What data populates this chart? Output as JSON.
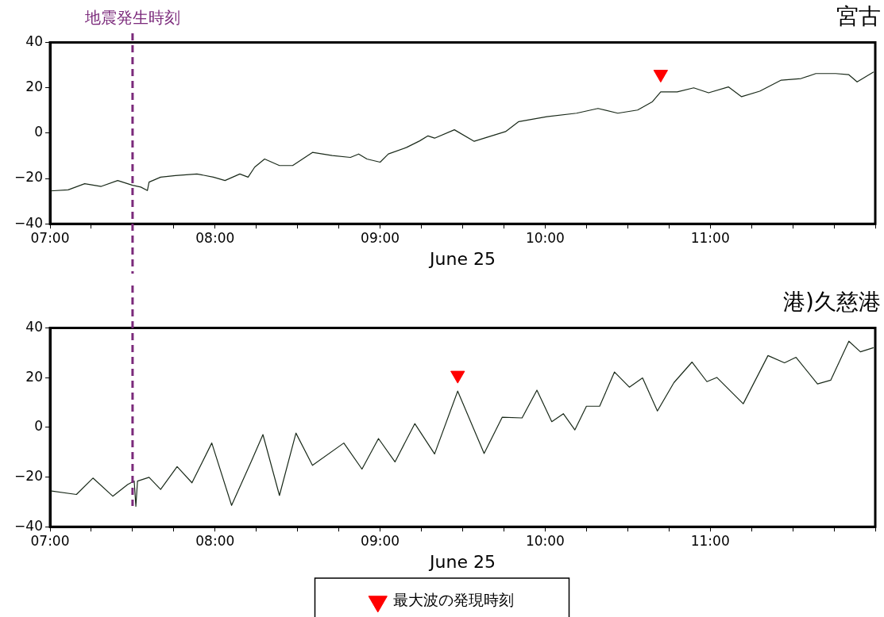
{
  "chart_data": [
    {
      "type": "line",
      "title": "宮古",
      "xlabel": "June 25",
      "xlim": [
        7,
        12
      ],
      "xticks": [
        {
          "value": 7,
          "label": "07:00"
        },
        {
          "value": 7.25,
          "label": null
        },
        {
          "value": 7.5,
          "label": null
        },
        {
          "value": 7.75,
          "label": null
        },
        {
          "value": 8,
          "label": "08:00"
        },
        {
          "value": 8.25,
          "label": null
        },
        {
          "value": 8.5,
          "label": null
        },
        {
          "value": 8.75,
          "label": null
        },
        {
          "value": 9,
          "label": "09:00"
        },
        {
          "value": 9.25,
          "label": null
        },
        {
          "value": 9.5,
          "label": null
        },
        {
          "value": 9.75,
          "label": null
        },
        {
          "value": 10,
          "label": "10:00"
        },
        {
          "value": 10.25,
          "label": null
        },
        {
          "value": 10.5,
          "label": null
        },
        {
          "value": 10.75,
          "label": null
        },
        {
          "value": 11,
          "label": "11:00"
        },
        {
          "value": 11.25,
          "label": null
        },
        {
          "value": 11.5,
          "label": null
        },
        {
          "value": 11.75,
          "label": null
        },
        {
          "value": 12,
          "label": null
        }
      ],
      "ylim": [
        -40,
        40
      ],
      "yticks": [
        -40,
        -20,
        0,
        20,
        40
      ],
      "grid": false,
      "legend": false,
      "marker": "none",
      "ref_lines": [
        {
          "axis": "x",
          "value": 7.5,
          "label": "地震発生時刻",
          "color": "#7b2a7b",
          "line_style": "dashed"
        }
      ],
      "series": [
        {
          "color": "#1a2a1a",
          "x": [
            7.0,
            7.11,
            7.21,
            7.31,
            7.41,
            7.5,
            7.55,
            7.59,
            7.6,
            7.67,
            7.76,
            7.89,
            7.99,
            8.06,
            8.15,
            8.2,
            8.24,
            8.3,
            8.39,
            8.47,
            8.59,
            8.71,
            8.82,
            8.87,
            8.92,
            9.0,
            9.05,
            9.16,
            9.24,
            9.29,
            9.33,
            9.45,
            9.57,
            9.76,
            9.84,
            10.01,
            10.19,
            10.32,
            10.44,
            10.56,
            10.65,
            10.7,
            10.8,
            10.9,
            10.99,
            11.11,
            11.19,
            11.3,
            11.43,
            11.55,
            11.64,
            11.76,
            11.84,
            11.89,
            11.99
          ],
          "values": [
            -25.5,
            -25,
            -22.3,
            -23.5,
            -20.9,
            -23,
            -23.8,
            -25.3,
            -21.6,
            -19.4,
            -18.7,
            -18,
            -19.4,
            -20.9,
            -18,
            -19.4,
            -15,
            -11.4,
            -14.3,
            -14.3,
            -8.5,
            -9.9,
            -10.7,
            -9.2,
            -11.4,
            -12.8,
            -9.2,
            -6.3,
            -3.4,
            -1.2,
            -2.2,
            1.5,
            -3.6,
            0.7,
            5.1,
            7.3,
            8.8,
            10.9,
            8.8,
            10.2,
            13.9,
            18.2,
            18.2,
            20,
            17.8,
            20.4,
            16.1,
            18.5,
            23.4,
            24.1,
            26.3,
            26.3,
            25.8,
            22.6,
            27
          ]
        },
        {
          "type": "scatter",
          "marker": "triangle",
          "color": "#ff0000",
          "x": [
            10.7
          ],
          "values": [
            26
          ]
        }
      ]
    },
    {
      "type": "line",
      "title": "港)久慈港",
      "xlabel": "June 25",
      "xlim": [
        7,
        12
      ],
      "xticks": [
        {
          "value": 7,
          "label": "07:00"
        },
        {
          "value": 7.25,
          "label": null
        },
        {
          "value": 7.5,
          "label": null
        },
        {
          "value": 7.75,
          "label": null
        },
        {
          "value": 8,
          "label": "08:00"
        },
        {
          "value": 8.25,
          "label": null
        },
        {
          "value": 8.5,
          "label": null
        },
        {
          "value": 8.75,
          "label": null
        },
        {
          "value": 9,
          "label": "09:00"
        },
        {
          "value": 9.25,
          "label": null
        },
        {
          "value": 9.5,
          "label": null
        },
        {
          "value": 9.75,
          "label": null
        },
        {
          "value": 10,
          "label": "10:00"
        },
        {
          "value": 10.25,
          "label": null
        },
        {
          "value": 10.5,
          "label": null
        },
        {
          "value": 10.75,
          "label": null
        },
        {
          "value": 11,
          "label": "11:00"
        },
        {
          "value": 11.25,
          "label": null
        },
        {
          "value": 11.5,
          "label": null
        },
        {
          "value": 11.75,
          "label": null
        },
        {
          "value": 12,
          "label": null
        }
      ],
      "ylim": [
        -40,
        40
      ],
      "yticks": [
        -40,
        -20,
        0,
        20,
        40
      ],
      "grid": false,
      "legend": "bottom",
      "marker": "none",
      "ref_lines": [
        {
          "axis": "x",
          "value": 7.5,
          "color": "#7b2a7b",
          "line_style": "dashed"
        }
      ],
      "series": [
        {
          "color": "#1a2a1a",
          "x": [
            7.0,
            7.16,
            7.26,
            7.38,
            7.47,
            7.51,
            7.52,
            7.53,
            7.6,
            7.67,
            7.77,
            7.86,
            7.98,
            8.1,
            8.22,
            8.29,
            8.39,
            8.49,
            8.59,
            8.78,
            8.89,
            8.99,
            9.09,
            9.21,
            9.33,
            9.47,
            9.63,
            9.74,
            9.86,
            9.95,
            10.04,
            10.11,
            10.18,
            10.25,
            10.33,
            10.42,
            10.51,
            10.59,
            10.68,
            10.78,
            10.89,
            10.98,
            11.04,
            11.2,
            11.35,
            11.45,
            11.52,
            11.65,
            11.73,
            11.84,
            11.91,
            11.99
          ],
          "values": [
            -25.5,
            -27,
            -20.4,
            -27.7,
            -23,
            -21.6,
            -31.8,
            -21.6,
            -20.1,
            -25,
            -15.8,
            -22.3,
            -6.3,
            -31.4,
            -13.6,
            -2.9,
            -27.4,
            -2.3,
            -15.3,
            -6.3,
            -16.8,
            -4.5,
            -13.9,
            1.5,
            -10.7,
            14.6,
            -10.5,
            4.1,
            3.8,
            15,
            2.3,
            5.5,
            -1,
            8.5,
            8.5,
            22.3,
            16.2,
            19.9,
            6.6,
            18,
            26.3,
            18.4,
            20.1,
            9.5,
            28.9,
            26,
            28.2,
            17.5,
            19,
            34.7,
            30.4,
            32.1
          ]
        },
        {
          "type": "scatter",
          "marker": "triangle",
          "name": "最大波の発現時刻",
          "color": "#ff0000",
          "x": [
            9.47
          ],
          "values": [
            21
          ]
        }
      ]
    }
  ]
}
